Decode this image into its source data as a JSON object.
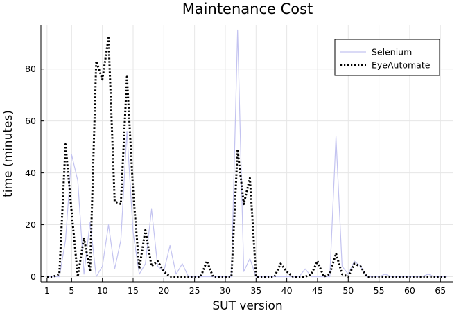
{
  "chart_data": {
    "type": "line",
    "title": "Maintenance Cost",
    "xlabel": "SUT version",
    "ylabel": "time (minutes)",
    "xlim": [
      0,
      67
    ],
    "ylim": [
      -2,
      97
    ],
    "xticks": [
      1,
      5,
      10,
      15,
      20,
      25,
      30,
      35,
      40,
      45,
      50,
      55,
      60,
      65
    ],
    "yticks": [
      0,
      20,
      40,
      60,
      80
    ],
    "grid": true,
    "legend": "top-right",
    "x": [
      1,
      2,
      3,
      4,
      5,
      6,
      7,
      8,
      9,
      10,
      11,
      12,
      13,
      14,
      15,
      16,
      17,
      18,
      19,
      20,
      21,
      22,
      23,
      24,
      25,
      26,
      27,
      28,
      29,
      30,
      31,
      32,
      33,
      34,
      35,
      36,
      37,
      38,
      39,
      40,
      41,
      42,
      43,
      44,
      45,
      46,
      47,
      48,
      49,
      50,
      51,
      52,
      53,
      54,
      55,
      56,
      57,
      58,
      59,
      60,
      61,
      62,
      63,
      64,
      65,
      66
    ],
    "series": [
      {
        "name": "Selenium",
        "color": "#c3c3f0",
        "style": "solid",
        "values": [
          0,
          0,
          0,
          14,
          47,
          37,
          1,
          21,
          0,
          4,
          20,
          3,
          14,
          56,
          17,
          1,
          5,
          26,
          4,
          2,
          12,
          1,
          5,
          0,
          0,
          0,
          0,
          0,
          0,
          0,
          0,
          95,
          2,
          7,
          0,
          0,
          0,
          0,
          0,
          0,
          0,
          0,
          3,
          0,
          0,
          0,
          0,
          54,
          4,
          1,
          6,
          4,
          0,
          0,
          0,
          1,
          0,
          0,
          0,
          0,
          0,
          0,
          1,
          0,
          0,
          0
        ]
      },
      {
        "name": "EyeAutomate",
        "color": "#000000",
        "style": "dotted",
        "values": [
          0,
          0,
          1,
          51,
          25,
          0,
          15,
          2,
          83,
          76,
          92,
          29,
          28,
          77,
          33,
          3,
          18,
          4,
          6,
          2,
          0,
          0,
          0,
          0,
          0,
          0,
          6,
          0,
          0,
          0,
          0,
          49,
          28,
          38,
          0,
          0,
          0,
          0,
          5,
          2,
          0,
          0,
          0,
          1,
          6,
          0,
          1,
          9,
          1,
          0,
          5,
          4,
          0,
          0,
          0,
          0,
          0,
          0,
          0,
          0,
          0,
          0,
          0,
          0,
          0,
          0
        ]
      }
    ]
  }
}
